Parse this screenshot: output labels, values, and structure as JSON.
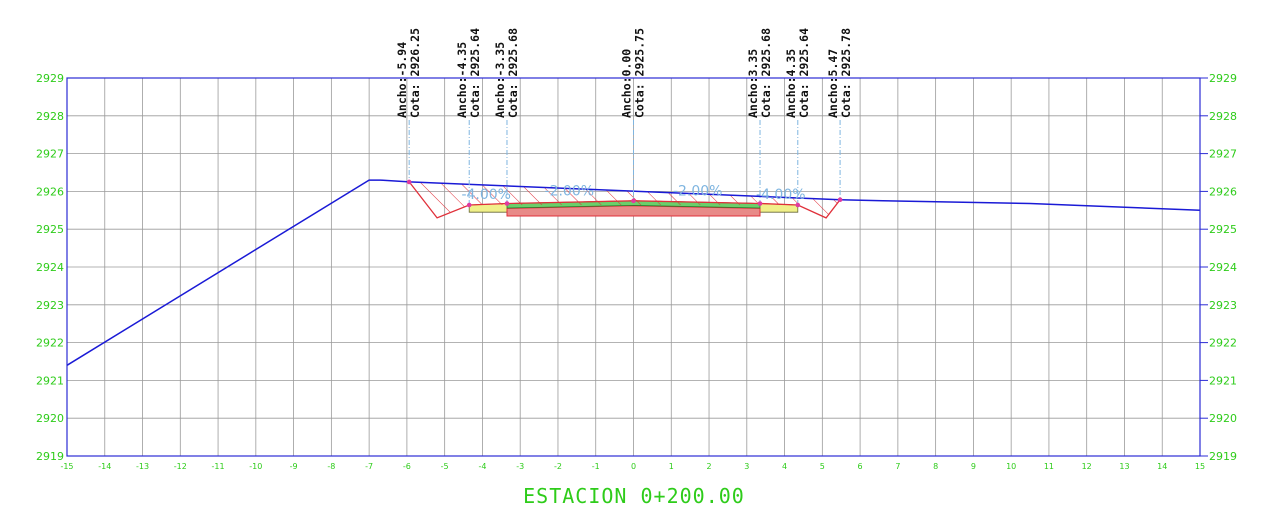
{
  "title": "ESTACION 0+200.00",
  "colors": {
    "grid": "#9a9a9a",
    "frame": "#2b2bd4",
    "terrain": "#1a1ad6",
    "labels": "#2ecc1a",
    "cut_hatch": "#e0303a",
    "pavement_fill": "#e88a88",
    "base_fill": "#f0f08a",
    "leader": "#7fb5e0"
  },
  "axes": {
    "x_ticks": [
      -15,
      -14,
      -13,
      -12,
      -11,
      -10,
      -9,
      -8,
      -7,
      -6,
      -5,
      -4,
      -3,
      -2,
      -1,
      0,
      1,
      2,
      3,
      4,
      5,
      6,
      7,
      8,
      9,
      10,
      11,
      12,
      13,
      14,
      15
    ],
    "y_ticks": [
      2919,
      2920,
      2921,
      2922,
      2923,
      2924,
      2925,
      2926,
      2927,
      2928,
      2929
    ],
    "xlim": [
      -15,
      15
    ],
    "ylim": [
      2919,
      2929
    ],
    "grid": true
  },
  "chart_data": {
    "type": "line",
    "terrain": [
      {
        "x": -15,
        "y": 2921.4
      },
      {
        "x": -7,
        "y": 2926.3
      },
      {
        "x": -6.7,
        "y": 2926.3
      },
      {
        "x": -5.94,
        "y": 2926.25
      },
      {
        "x": 5.47,
        "y": 2925.78
      },
      {
        "x": 6.6,
        "y": 2925.75
      },
      {
        "x": 10.5,
        "y": 2925.68
      },
      {
        "x": 15,
        "y": 2925.5
      }
    ],
    "cut_outline": [
      {
        "x": -5.94,
        "y": 2926.25
      },
      {
        "x": -5.2,
        "y": 2925.3
      },
      {
        "x": -4.35,
        "y": 2925.64
      },
      {
        "x": -3.35,
        "y": 2925.68
      },
      {
        "x": 0,
        "y": 2925.75
      },
      {
        "x": 3.35,
        "y": 2925.68
      },
      {
        "x": 4.35,
        "y": 2925.64
      },
      {
        "x": 5.1,
        "y": 2925.3
      },
      {
        "x": 5.47,
        "y": 2925.78
      }
    ],
    "points": [
      {
        "label": "Ancho:-5.94",
        "cota": "Cota:  2926.25",
        "x": -5.94,
        "y": 2926.25
      },
      {
        "label": "Ancho:-4.35",
        "cota": "Cota:  2925.64",
        "x": -4.35,
        "y": 2925.64
      },
      {
        "label": "Ancho:-3.35",
        "cota": "Cota:  2925.68",
        "x": -3.35,
        "y": 2925.68
      },
      {
        "label": "Ancho:0.00",
        "cota": "Cota:  2925.75",
        "x": 0,
        "y": 2925.75
      },
      {
        "label": "Ancho:3.35",
        "cota": "Cota:  2925.68",
        "x": 3.35,
        "y": 2925.68
      },
      {
        "label": "Ancho:4.35",
        "cota": "Cota:  2925.64",
        "x": 4.35,
        "y": 2925.64
      },
      {
        "label": "Ancho:5.47",
        "cota": "Cota:  2925.78",
        "x": 5.47,
        "y": 2925.78
      }
    ],
    "slopes": [
      {
        "text": "-4.00%",
        "x": -3.9,
        "y": 2925.9
      },
      {
        "text": "-2.00%",
        "x": -1.7,
        "y": 2926.0
      },
      {
        "text": "-2.00%",
        "x": 1.7,
        "y": 2926.0
      },
      {
        "text": "-4.00%",
        "x": 3.9,
        "y": 2925.9
      }
    ]
  }
}
